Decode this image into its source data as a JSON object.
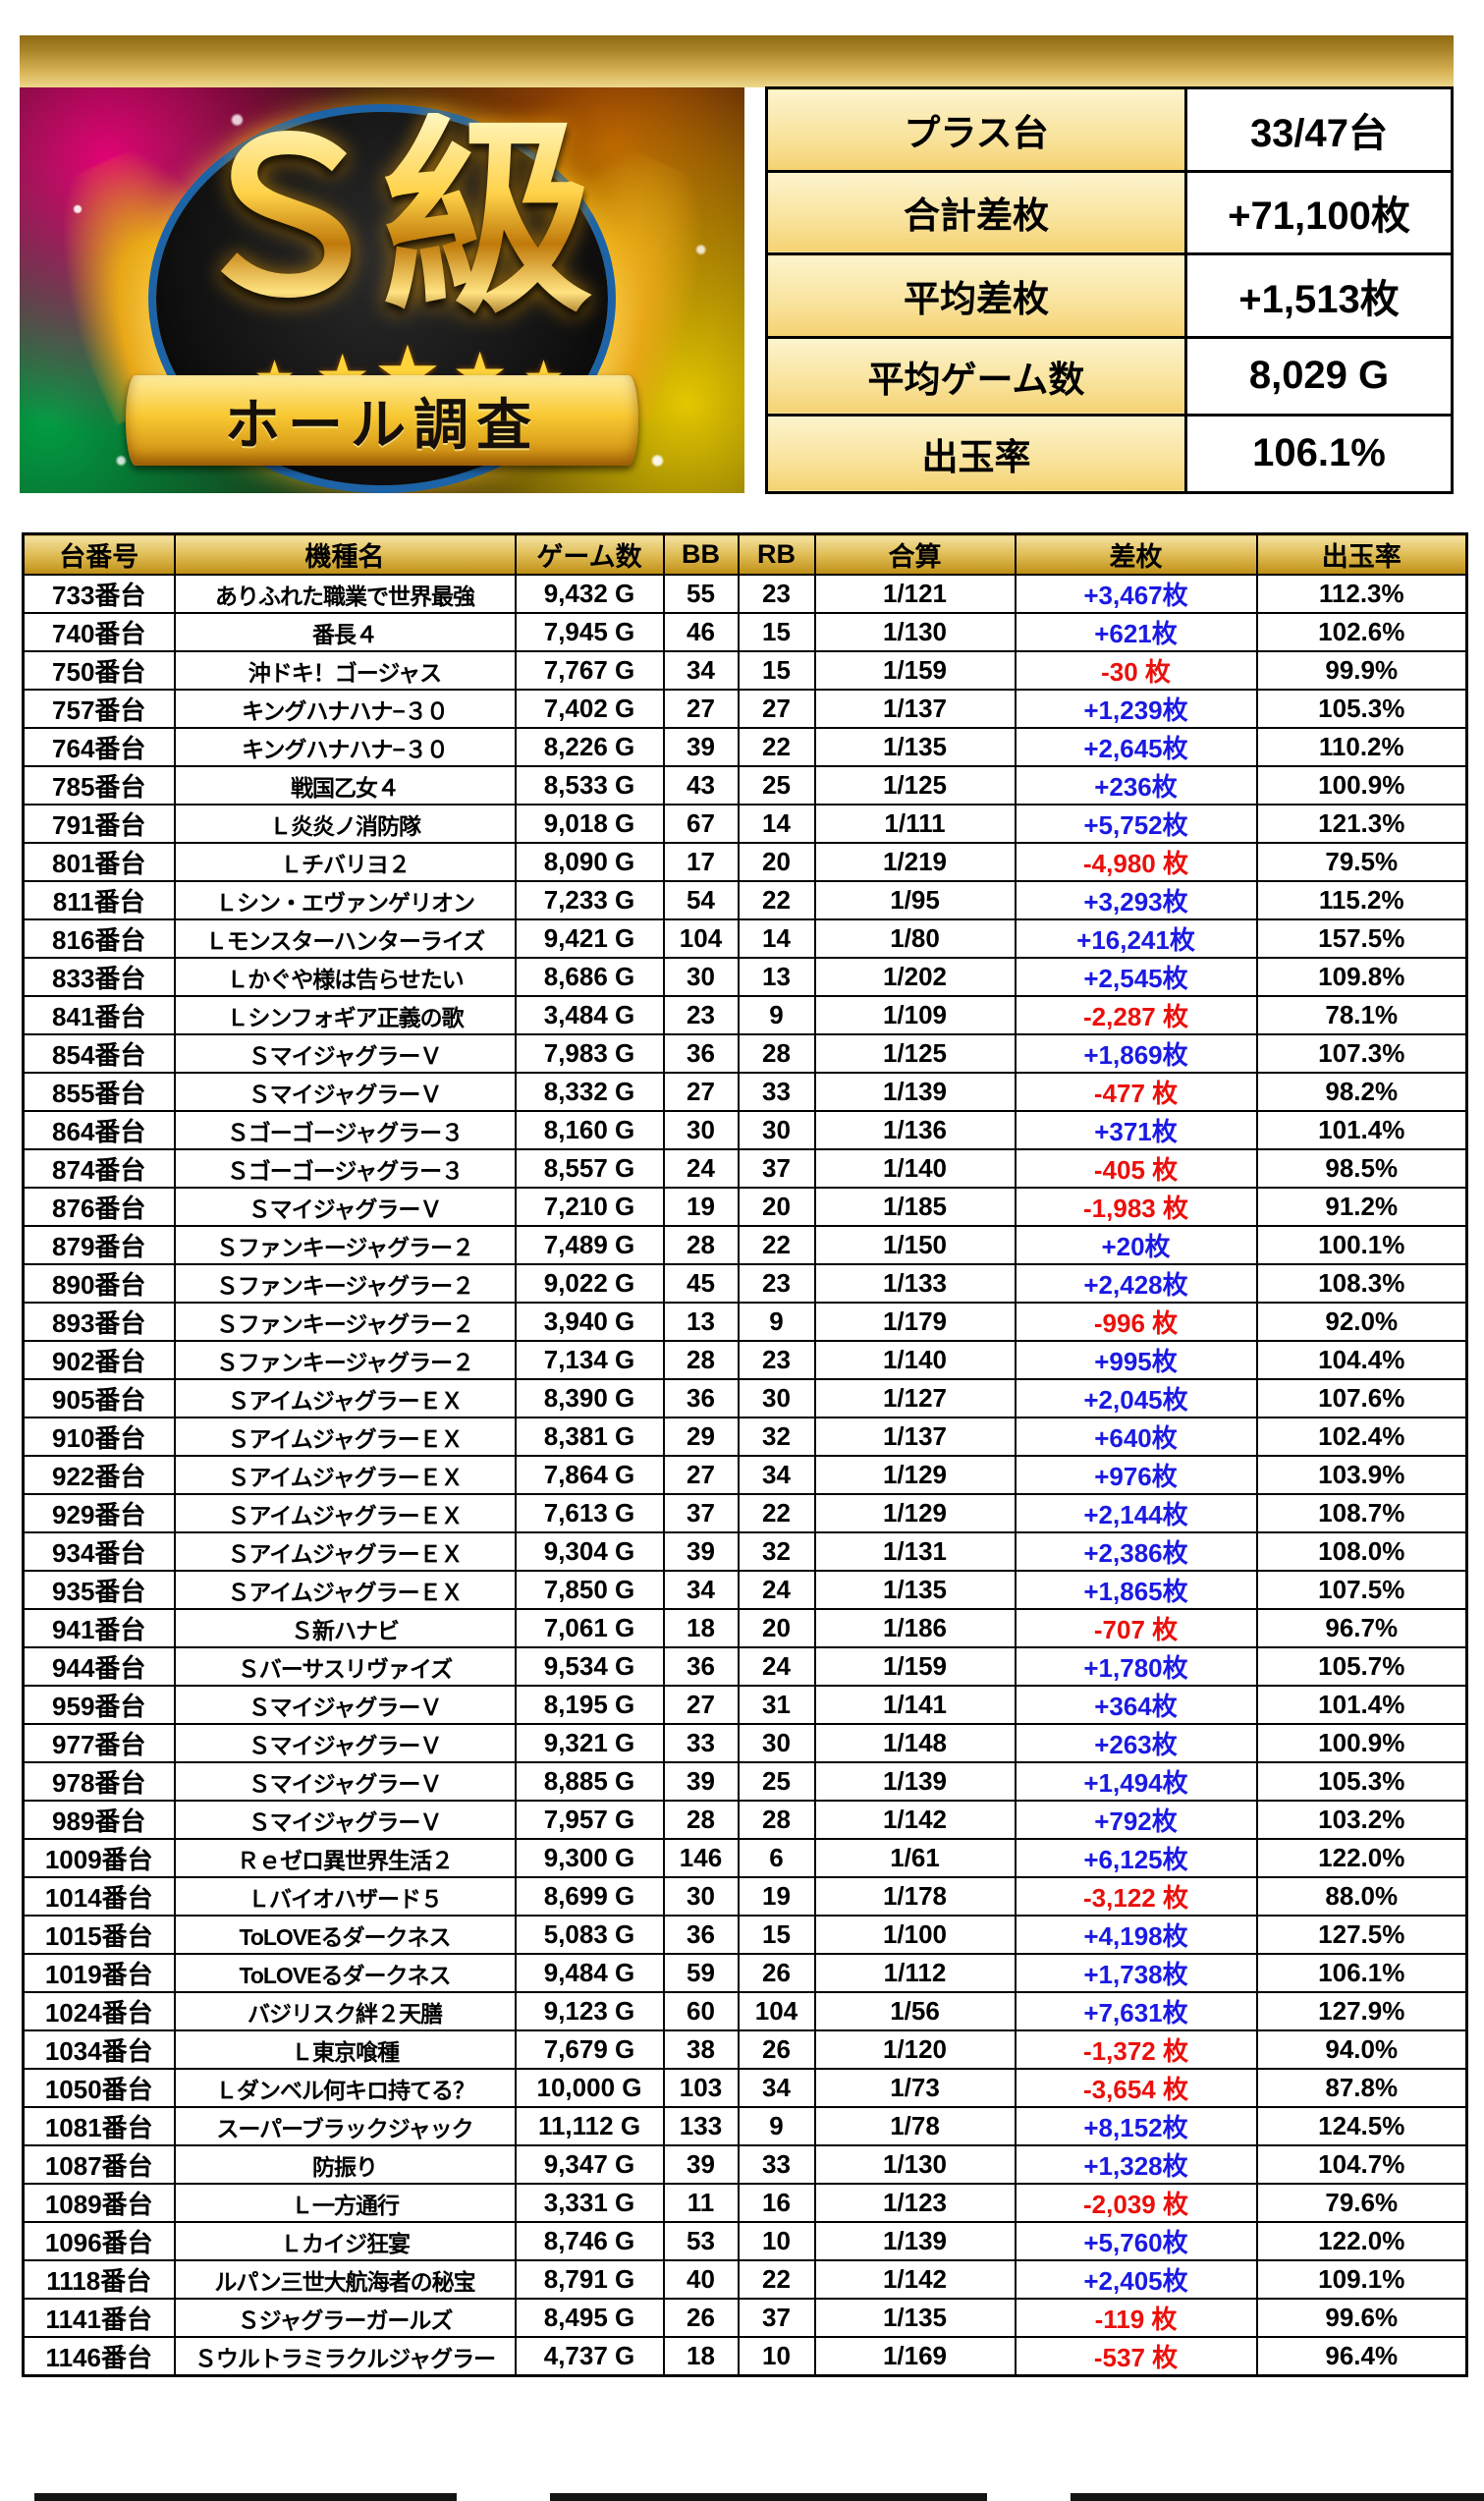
{
  "logo": {
    "title": "Ｓ級",
    "subtitle": "ホール調査"
  },
  "summary": {
    "rows": [
      {
        "label": "プラス台",
        "value": "33/47台"
      },
      {
        "label": "合計差枚",
        "value": "+71,100枚"
      },
      {
        "label": "平均差枚",
        "value": "+1,513枚"
      },
      {
        "label": "平均ゲーム数",
        "value": "8,029 G"
      },
      {
        "label": "出玉率",
        "value": "106.1%"
      }
    ]
  },
  "table": {
    "columns": [
      "台番号",
      "機種名",
      "ゲーム数",
      "BB",
      "RB",
      "合算",
      "差枚",
      "出玉率"
    ],
    "rows": [
      [
        "733番台",
        "ありふれた職業で世界最強",
        "9,432 G",
        "55",
        "23",
        "1/121",
        "+3,467枚",
        "112.3%"
      ],
      [
        "740番台",
        "番長４",
        "7,945 G",
        "46",
        "15",
        "1/130",
        "+621枚",
        "102.6%"
      ],
      [
        "750番台",
        "沖ドキ！ゴージャス",
        "7,767 G",
        "34",
        "15",
        "1/159",
        "-30 枚",
        "99.9%"
      ],
      [
        "757番台",
        "キングハナハナ−３０",
        "7,402 G",
        "27",
        "27",
        "1/137",
        "+1,239枚",
        "105.3%"
      ],
      [
        "764番台",
        "キングハナハナ−３０",
        "8,226 G",
        "39",
        "22",
        "1/135",
        "+2,645枚",
        "110.2%"
      ],
      [
        "785番台",
        "戦国乙女４",
        "8,533 G",
        "43",
        "25",
        "1/125",
        "+236枚",
        "100.9%"
      ],
      [
        "791番台",
        "Ｌ炎炎ノ消防隊",
        "9,018 G",
        "67",
        "14",
        "1/111",
        "+5,752枚",
        "121.3%"
      ],
      [
        "801番台",
        "Ｌチバリヨ２",
        "8,090 G",
        "17",
        "20",
        "1/219",
        "-4,980 枚",
        "79.5%"
      ],
      [
        "811番台",
        "Ｌシン・エヴァンゲリオン",
        "7,233 G",
        "54",
        "22",
        "1/95",
        "+3,293枚",
        "115.2%"
      ],
      [
        "816番台",
        "Ｌモンスターハンターライズ",
        "9,421 G",
        "104",
        "14",
        "1/80",
        "+16,241枚",
        "157.5%"
      ],
      [
        "833番台",
        "Ｌかぐや様は告らせたい",
        "8,686 G",
        "30",
        "13",
        "1/202",
        "+2,545枚",
        "109.8%"
      ],
      [
        "841番台",
        "Ｌシンフォギア正義の歌",
        "3,484 G",
        "23",
        "9",
        "1/109",
        "-2,287 枚",
        "78.1%"
      ],
      [
        "854番台",
        "ＳマイジャグラーＶ",
        "7,983 G",
        "36",
        "28",
        "1/125",
        "+1,869枚",
        "107.3%"
      ],
      [
        "855番台",
        "ＳマイジャグラーＶ",
        "8,332 G",
        "27",
        "33",
        "1/139",
        "-477 枚",
        "98.2%"
      ],
      [
        "864番台",
        "Ｓゴーゴージャグラー３",
        "8,160 G",
        "30",
        "30",
        "1/136",
        "+371枚",
        "101.4%"
      ],
      [
        "874番台",
        "Ｓゴーゴージャグラー３",
        "8,557 G",
        "24",
        "37",
        "1/140",
        "-405 枚",
        "98.5%"
      ],
      [
        "876番台",
        "ＳマイジャグラーＶ",
        "7,210 G",
        "19",
        "20",
        "1/185",
        "-1,983 枚",
        "91.2%"
      ],
      [
        "879番台",
        "Ｓファンキージャグラー２",
        "7,489 G",
        "28",
        "22",
        "1/150",
        "+20枚",
        "100.1%"
      ],
      [
        "890番台",
        "Ｓファンキージャグラー２",
        "9,022 G",
        "45",
        "23",
        "1/133",
        "+2,428枚",
        "108.3%"
      ],
      [
        "893番台",
        "Ｓファンキージャグラー２",
        "3,940 G",
        "13",
        "9",
        "1/179",
        "-996 枚",
        "92.0%"
      ],
      [
        "902番台",
        "Ｓファンキージャグラー２",
        "7,134 G",
        "28",
        "23",
        "1/140",
        "+995枚",
        "104.4%"
      ],
      [
        "905番台",
        "ＳアイムジャグラーＥＸ",
        "8,390 G",
        "36",
        "30",
        "1/127",
        "+2,045枚",
        "107.6%"
      ],
      [
        "910番台",
        "ＳアイムジャグラーＥＸ",
        "8,381 G",
        "29",
        "32",
        "1/137",
        "+640枚",
        "102.4%"
      ],
      [
        "922番台",
        "ＳアイムジャグラーＥＸ",
        "7,864 G",
        "27",
        "34",
        "1/129",
        "+976枚",
        "103.9%"
      ],
      [
        "929番台",
        "ＳアイムジャグラーＥＸ",
        "7,613 G",
        "37",
        "22",
        "1/129",
        "+2,144枚",
        "108.7%"
      ],
      [
        "934番台",
        "ＳアイムジャグラーＥＸ",
        "9,304 G",
        "39",
        "32",
        "1/131",
        "+2,386枚",
        "108.0%"
      ],
      [
        "935番台",
        "ＳアイムジャグラーＥＸ",
        "7,850 G",
        "34",
        "24",
        "1/135",
        "+1,865枚",
        "107.5%"
      ],
      [
        "941番台",
        "Ｓ新ハナビ",
        "7,061 G",
        "18",
        "20",
        "1/186",
        "-707 枚",
        "96.7%"
      ],
      [
        "944番台",
        "Ｓバーサスリヴァイズ",
        "9,534 G",
        "36",
        "24",
        "1/159",
        "+1,780枚",
        "105.7%"
      ],
      [
        "959番台",
        "ＳマイジャグラーＶ",
        "8,195 G",
        "27",
        "31",
        "1/141",
        "+364枚",
        "101.4%"
      ],
      [
        "977番台",
        "ＳマイジャグラーＶ",
        "9,321 G",
        "33",
        "30",
        "1/148",
        "+263枚",
        "100.9%"
      ],
      [
        "978番台",
        "ＳマイジャグラーＶ",
        "8,885 G",
        "39",
        "25",
        "1/139",
        "+1,494枚",
        "105.3%"
      ],
      [
        "989番台",
        "ＳマイジャグラーＶ",
        "7,957 G",
        "28",
        "28",
        "1/142",
        "+792枚",
        "103.2%"
      ],
      [
        "1009番台",
        "Ｒｅゼロ異世界生活２",
        "9,300 G",
        "146",
        "6",
        "1/61",
        "+6,125枚",
        "122.0%"
      ],
      [
        "1014番台",
        "Ｌバイオハザード５",
        "8,699 G",
        "30",
        "19",
        "1/178",
        "-3,122 枚",
        "88.0%"
      ],
      [
        "1015番台",
        "ToLOVEるダークネス",
        "5,083 G",
        "36",
        "15",
        "1/100",
        "+4,198枚",
        "127.5%"
      ],
      [
        "1019番台",
        "ToLOVEるダークネス",
        "9,484 G",
        "59",
        "26",
        "1/112",
        "+1,738枚",
        "106.1%"
      ],
      [
        "1024番台",
        "バジリスク絆２天膳",
        "9,123 G",
        "60",
        "104",
        "1/56",
        "+7,631枚",
        "127.9%"
      ],
      [
        "1034番台",
        "Ｌ東京喰種",
        "7,679 G",
        "38",
        "26",
        "1/120",
        "-1,372 枚",
        "94.0%"
      ],
      [
        "1050番台",
        "Ｌダンベル何キロ持てる？",
        "10,000 G",
        "103",
        "34",
        "1/73",
        "-3,654 枚",
        "87.8%"
      ],
      [
        "1081番台",
        "スーパーブラックジャック",
        "11,112 G",
        "133",
        "9",
        "1/78",
        "+8,152枚",
        "124.5%"
      ],
      [
        "1087番台",
        "防振り",
        "9,347 G",
        "39",
        "33",
        "1/130",
        "+1,328枚",
        "104.7%"
      ],
      [
        "1089番台",
        "Ｌ一方通行",
        "3,331 G",
        "11",
        "16",
        "1/123",
        "-2,039 枚",
        "79.6%"
      ],
      [
        "1096番台",
        "Ｌカイジ狂宴",
        "8,746 G",
        "53",
        "10",
        "1/139",
        "+5,760枚",
        "122.0%"
      ],
      [
        "1118番台",
        "ルパン三世大航海者の秘宝",
        "8,791 G",
        "40",
        "22",
        "1/142",
        "+2,405枚",
        "109.1%"
      ],
      [
        "1141番台",
        "Ｓジャグラーガールズ",
        "8,495 G",
        "26",
        "37",
        "1/135",
        "-119 枚",
        "99.6%"
      ],
      [
        "1146番台",
        "Ｓウルトラミラクルジャグラー",
        "4,737 G",
        "18",
        "10",
        "1/169",
        "-537 枚",
        "96.4%"
      ]
    ]
  },
  "colors": {
    "positive_diff": "#1b1ae3",
    "negative_diff": "#ea100c",
    "header_gold": "#cda32e",
    "summary_label_gold": "#f8e09a"
  }
}
